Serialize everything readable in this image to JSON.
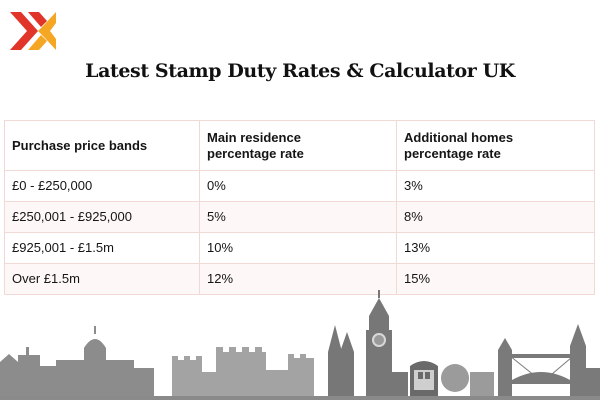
{
  "header": {
    "title": "Latest Stamp Duty Rates & Calculator UK"
  },
  "colors": {
    "logo_primary": "#e2352a",
    "logo_secondary": "#f5a623",
    "table_border": "#f1d9d5",
    "text": "#151515"
  },
  "icons": {
    "logo": "brand-logo-icon",
    "skyline": "london-skyline-illustration"
  },
  "table": {
    "headers": [
      {
        "line1": "Purchase price bands",
        "line2": ""
      },
      {
        "line1": "Main residence",
        "line2": "percentage rate"
      },
      {
        "line1": "Additional homes",
        "line2": "percentage rate"
      }
    ],
    "rows": [
      {
        "band": "£0 - £250,000",
        "main": "0%",
        "additional": "3%"
      },
      {
        "band": "£250,001 - £925,000",
        "main": "5%",
        "additional": "8%"
      },
      {
        "band": "£925,001 - £1.5m",
        "main": "10%",
        "additional": "13%"
      },
      {
        "band": "Over £1.5m",
        "main": "12%",
        "additional": "15%"
      }
    ]
  }
}
